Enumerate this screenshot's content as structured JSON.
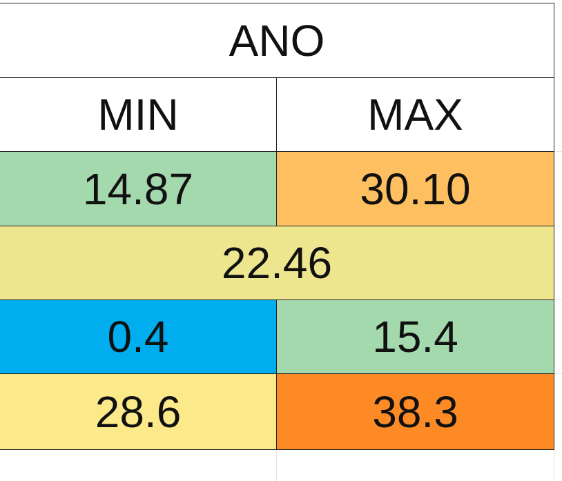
{
  "table": {
    "title": "ANO",
    "header": [
      "MIN",
      "MAX"
    ],
    "rows": [
      [
        "14.87",
        "30.10"
      ],
      [
        "22.46"
      ],
      [
        "0.4",
        "15.4"
      ],
      [
        "28.6",
        "38.3"
      ]
    ]
  }
}
